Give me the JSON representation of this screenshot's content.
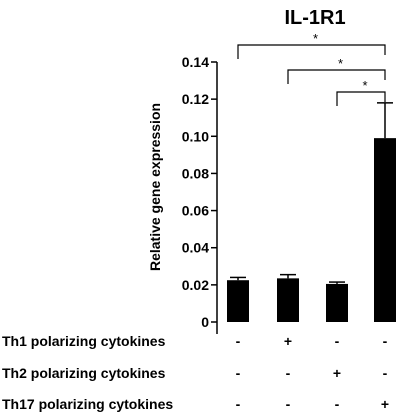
{
  "chart_data": {
    "type": "bar",
    "title": "IL-1R1",
    "ylabel": "Relative gene expression",
    "xlabel": "",
    "ylim": [
      0,
      0.14
    ],
    "yticks": [
      {
        "value": 0,
        "label": "0"
      },
      {
        "value": 0.02,
        "label": "0.02"
      },
      {
        "value": 0.04,
        "label": "0.04"
      },
      {
        "value": 0.06,
        "label": "0.06"
      },
      {
        "value": 0.08,
        "label": "0.08"
      },
      {
        "value": 0.1,
        "label": "0.10"
      },
      {
        "value": 0.12,
        "label": "0.12"
      },
      {
        "value": 0.14,
        "label": "0.14"
      }
    ],
    "values": [
      0.0225,
      0.0235,
      0.0205,
      0.099
    ],
    "errors": [
      0.0015,
      0.002,
      0.001,
      0.019
    ],
    "bar_color": "#000000",
    "treatment_rows": [
      {
        "label": "Th1 polarizing cytokines",
        "marks": [
          "-",
          "+",
          "-",
          "-"
        ]
      },
      {
        "label": "Th2 polarizing cytokines",
        "marks": [
          "-",
          "-",
          "+",
          "-"
        ]
      },
      {
        "label": "Th17 polarizing cytokines",
        "marks": [
          "-",
          "-",
          "-",
          "+"
        ]
      }
    ],
    "significance": [
      {
        "from": 0,
        "to": 3,
        "label": "*"
      },
      {
        "from": 1,
        "to": 3,
        "label": "*"
      },
      {
        "from": 2,
        "to": 3,
        "label": "*"
      }
    ],
    "grid": false
  }
}
